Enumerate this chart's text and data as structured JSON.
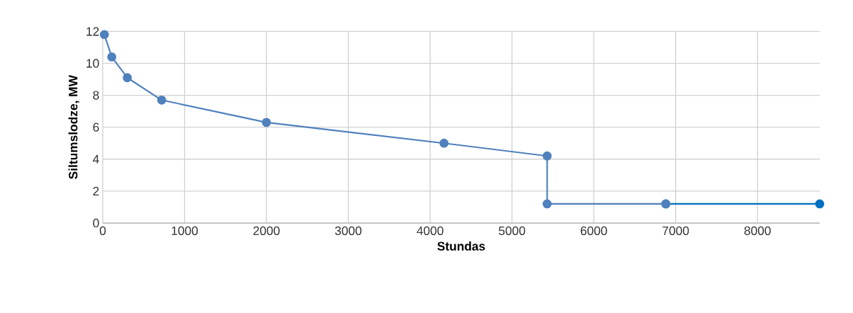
{
  "chart_data": {
    "type": "line",
    "xlabel": "Stundas",
    "ylabel": "Siltumslodze, MW",
    "xlim": [
      0,
      8760
    ],
    "xticks": [
      0,
      1000,
      2000,
      3000,
      4000,
      5000,
      6000,
      7000,
      8000
    ],
    "ylim": [
      0,
      12
    ],
    "yticks": [
      0,
      2,
      4,
      6,
      8,
      10,
      12
    ],
    "grid": true,
    "marker": "circle",
    "line_style": "solid",
    "series": [
      {
        "color": "#0070c0",
        "x": [
          6880,
          8760
        ],
        "values": [
          1.2,
          1.2
        ]
      },
      {
        "color": "#4f81bd",
        "x": [
          20,
          110,
          300,
          720,
          2000,
          4170,
          5430,
          5430,
          6880
        ],
        "values": [
          11.8,
          10.4,
          9.1,
          7.7,
          6.3,
          5.0,
          4.2,
          1.2,
          1.2
        ]
      }
    ]
  }
}
